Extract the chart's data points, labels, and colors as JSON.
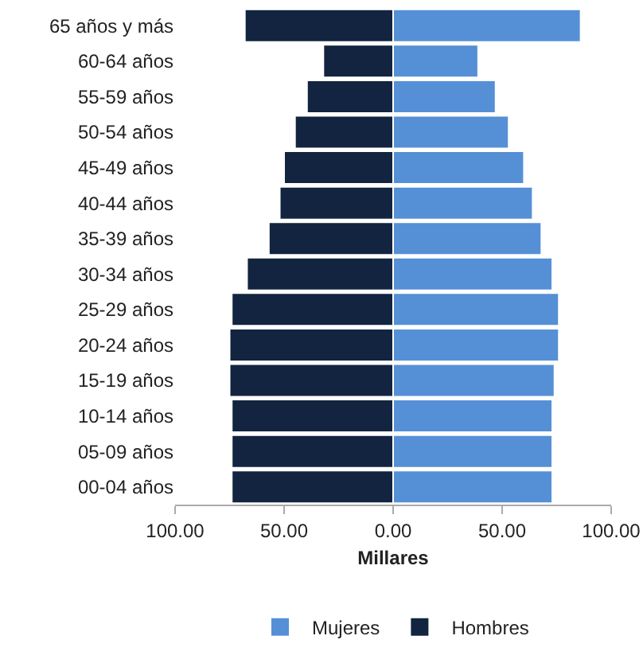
{
  "chart_data": {
    "type": "bar",
    "orientation": "horizontal",
    "stacked": true,
    "categories": [
      "65 años y más",
      "60-64 años",
      "55-59 años",
      "50-54 años",
      "45-49 años",
      "40-44 años",
      "35-39 años",
      "30-34 años",
      "25-29 años",
      "20-24 años",
      "15-19 años",
      "10-14 años",
      "05-09 años",
      "00-04 años"
    ],
    "series": [
      {
        "name": "Mujeres",
        "color": "#5590d6",
        "values": [
          86,
          39,
          47,
          53,
          60,
          64,
          68,
          73,
          76,
          76,
          74,
          73,
          73,
          73
        ]
      },
      {
        "name": "Hombres",
        "color": "#12243f",
        "values": [
          -68,
          -32,
          -39.5,
          -45,
          -50,
          -52,
          -57,
          -67,
          -74,
          -75,
          -75,
          -74,
          -74,
          -74
        ]
      }
    ],
    "xlabel": "Millares",
    "xlim": [
      -100,
      100
    ],
    "xticks": [
      {
        "value": -100,
        "label": "100.00"
      },
      {
        "value": -50,
        "label": "50.00"
      },
      {
        "value": 0,
        "label": "0.00"
      },
      {
        "value": 50,
        "label": "50.00"
      },
      {
        "value": 100,
        "label": "100.00"
      }
    ],
    "grid": false,
    "legend": "bottom"
  }
}
